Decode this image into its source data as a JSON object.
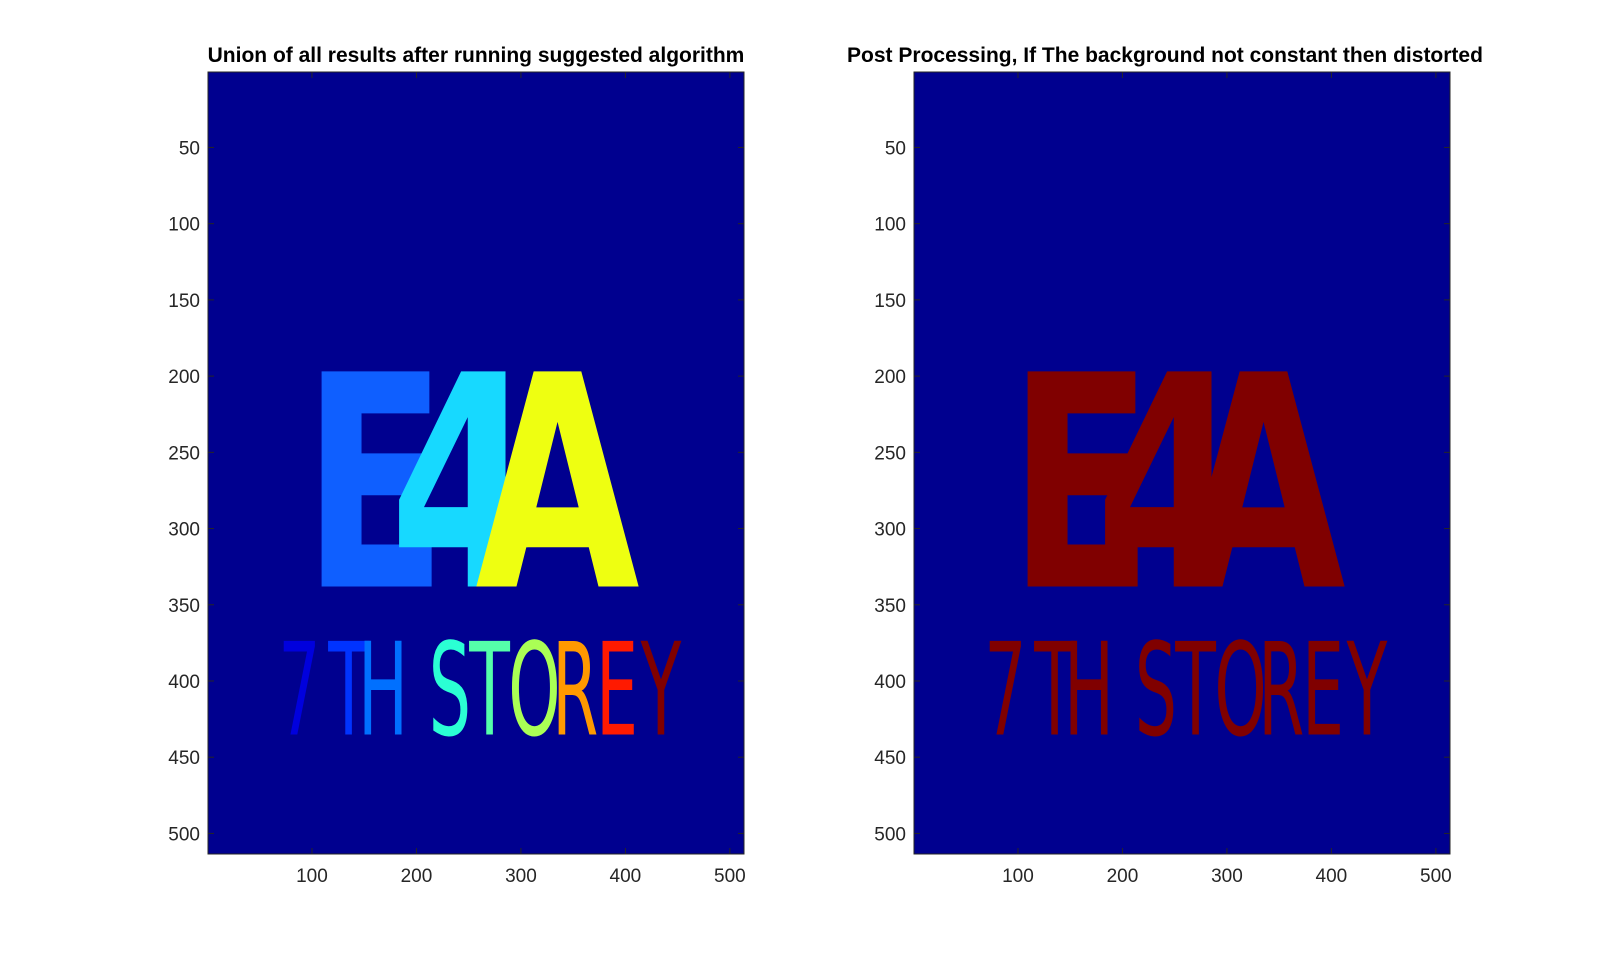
{
  "figure": {
    "panels": [
      {
        "id": "left",
        "title": "Union of all results after running suggested algorithm",
        "background_color": "#00008F",
        "x_ticks": [
          "100",
          "200",
          "300",
          "400",
          "500"
        ],
        "y_ticks": [
          "50",
          "100",
          "150",
          "200",
          "250",
          "300",
          "350",
          "400",
          "450",
          "500"
        ],
        "big_text": [
          {
            "char": "E",
            "color": "#0F5FFF"
          },
          {
            "char": "4",
            "color": "#17D9FF"
          },
          {
            "char": "A",
            "color": "#EEFF11"
          }
        ],
        "small_text": [
          {
            "char": "7",
            "color": "#0000DD"
          },
          {
            "char": "T",
            "color": "#0033FF"
          },
          {
            "char": "H",
            "color": "#0070FF"
          },
          {
            "char": "S",
            "color": "#2BFFD4"
          },
          {
            "char": "T",
            "color": "#55FFAA"
          },
          {
            "char": "O",
            "color": "#AAFF55"
          },
          {
            "char": "R",
            "color": "#FF9900"
          },
          {
            "char": "E",
            "color": "#FF1A00"
          },
          {
            "char": "Y",
            "color": "#800000"
          }
        ]
      },
      {
        "id": "right",
        "title": "Post Processing, If The background not constant then distorted",
        "background_color": "#00008F",
        "x_ticks": [
          "100",
          "200",
          "300",
          "400",
          "500"
        ],
        "y_ticks": [
          "50",
          "100",
          "150",
          "200",
          "250",
          "300",
          "350",
          "400",
          "450",
          "500"
        ],
        "big_text": [
          {
            "char": "E",
            "color": "#800000"
          },
          {
            "char": "4",
            "color": "#800000"
          },
          {
            "char": "A",
            "color": "#800000"
          }
        ],
        "small_text": [
          {
            "char": "7",
            "color": "#800000"
          },
          {
            "char": "T",
            "color": "#800000"
          },
          {
            "char": "H",
            "color": "#800000"
          },
          {
            "char": "S",
            "color": "#800000"
          },
          {
            "char": "T",
            "color": "#800000"
          },
          {
            "char": "O",
            "color": "#800000"
          },
          {
            "char": "R",
            "color": "#800000"
          },
          {
            "char": "E",
            "color": "#800000"
          },
          {
            "char": "Y",
            "color": "#800000"
          }
        ]
      }
    ]
  }
}
